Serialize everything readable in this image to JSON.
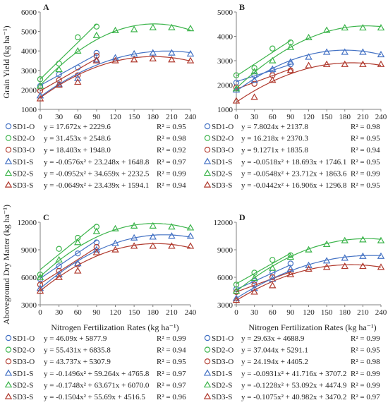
{
  "colors": {
    "SD1": "#4472c4",
    "SD2": "#3cb44b",
    "SD3": "#b03a2e",
    "axis": "#808080",
    "text": "#222222"
  },
  "common": {
    "xlabel": "Nitrogen Fertilization Rates (kg ha⁻¹)",
    "ylabel_top": "Grain Yield (kg ha⁻¹)",
    "ylabel_bottom": "Aboveground Dry Matter (kg ha⁻¹)"
  },
  "chart_data": [
    {
      "panel": "A",
      "type": "scatter",
      "xlabel": "",
      "ylabel": "Grain Yield (kg ha⁻¹)",
      "xlim": [
        0,
        240
      ],
      "ylim": [
        1000,
        6000
      ],
      "xticks": [
        0,
        30,
        60,
        90,
        120,
        150,
        180,
        210,
        240
      ],
      "yticks": [
        1000,
        2000,
        3000,
        4000,
        5000,
        6000
      ],
      "series": [
        {
          "name": "SD1-O",
          "group": "SD1",
          "marker": "circle",
          "x": [
            0,
            30,
            60,
            90
          ],
          "y": [
            2200,
            2800,
            3150,
            3900
          ],
          "eq": "y = 17.672x + 2229.6",
          "r2": "R² = 0.95"
        },
        {
          "name": "SD2-O",
          "group": "SD2",
          "marker": "circle",
          "x": [
            0,
            30,
            60,
            90
          ],
          "y": [
            2550,
            3350,
            4700,
            5250
          ],
          "eq": "y = 31.453x + 2548.6",
          "r2": "R² = 0.98"
        },
        {
          "name": "SD3-O",
          "group": "SD3",
          "marker": "circle",
          "x": [
            0,
            30,
            60,
            90
          ],
          "y": [
            1950,
            2500,
            2750,
            3750
          ],
          "eq": "y = 18.403x + 1948.0",
          "r2": "R² = 0.92"
        },
        {
          "name": "SD1-S",
          "group": "SD1",
          "marker": "triangle",
          "x": [
            0,
            30,
            60,
            90,
            120,
            150,
            180,
            210,
            240
          ],
          "y": [
            1700,
            2300,
            2600,
            3550,
            3650,
            3850,
            3900,
            3900,
            3850
          ],
          "eq": "y = -0.0576x² + 23.248x + 1648.8",
          "r2": "R² = 0.97"
        },
        {
          "name": "SD2-S",
          "group": "SD2",
          "marker": "triangle",
          "x": [
            0,
            30,
            60,
            90,
            120,
            150,
            180,
            210,
            240
          ],
          "y": [
            2200,
            3050,
            4000,
            4800,
            5050,
            5100,
            5200,
            5200,
            5150
          ],
          "eq": "y = -0.0952x² + 34.659x + 2232.5",
          "r2": "R² = 0.99"
        },
        {
          "name": "SD3-S",
          "group": "SD3",
          "marker": "triangle",
          "x": [
            0,
            30,
            60,
            90,
            120,
            150,
            180,
            210,
            240
          ],
          "y": [
            1550,
            2250,
            2400,
            3500,
            3500,
            3550,
            3600,
            3550,
            3500
          ],
          "eq": "y = -0.0649x² + 23.439x + 1594.1",
          "r2": "R² = 0.94"
        }
      ]
    },
    {
      "panel": "B",
      "type": "scatter",
      "xlabel": "",
      "ylabel": "",
      "xlim": [
        0,
        240
      ],
      "ylim": [
        1000,
        5000
      ],
      "xticks": [
        0,
        30,
        60,
        90,
        120,
        150,
        180,
        210,
        240
      ],
      "yticks": [
        1000,
        2000,
        3000,
        4000,
        5000
      ],
      "series": [
        {
          "name": "SD1-O",
          "group": "SD1",
          "marker": "circle",
          "x": [
            0,
            30,
            60,
            90
          ],
          "y": [
            2100,
            2400,
            2600,
            2850
          ],
          "eq": "y = 7.8024x + 2137.8",
          "r2": "R² = 0.98"
        },
        {
          "name": "SD2-O",
          "group": "SD2",
          "marker": "circle",
          "x": [
            0,
            30,
            60,
            90
          ],
          "y": [
            2400,
            2700,
            3500,
            3750
          ],
          "eq": "y = 16.218x + 2370.3",
          "r2": "R² = 0.95"
        },
        {
          "name": "SD3-O",
          "group": "SD3",
          "marker": "circle",
          "x": [
            0,
            30,
            60,
            90
          ],
          "y": [
            1900,
            2050,
            2400,
            2600
          ],
          "eq": "y = 9.1271x + 1835.8",
          "r2": "R² = 0.94"
        },
        {
          "name": "SD1-S",
          "group": "SD1",
          "marker": "triangle",
          "x": [
            0,
            30,
            60,
            90,
            120,
            150,
            180,
            210,
            240
          ],
          "y": [
            1800,
            2200,
            2650,
            2950,
            3150,
            3350,
            3350,
            3350,
            3250
          ],
          "eq": "y = -0.0518x² + 18.693x + 1746.1",
          "r2": "R² = 0.95"
        },
        {
          "name": "SD2-S",
          "group": "SD2",
          "marker": "triangle",
          "x": [
            0,
            30,
            60,
            90,
            120,
            150,
            180,
            210,
            240
          ],
          "y": [
            1850,
            2550,
            3000,
            3550,
            3950,
            4250,
            4350,
            4350,
            4350
          ],
          "eq": "y = -0.0548x² + 23.712x + 1863.6",
          "r2": "R² = 0.99"
        },
        {
          "name": "SD3-S",
          "group": "SD3",
          "marker": "triangle",
          "x": [
            0,
            30,
            60,
            90,
            120,
            150,
            180,
            210,
            240
          ],
          "y": [
            1350,
            1500,
            2200,
            2600,
            2800,
            2850,
            2850,
            2850,
            2850
          ],
          "eq": "y = -0.0442x² + 16.906x + 1296.8",
          "r2": "R² = 0.95"
        }
      ]
    },
    {
      "panel": "C",
      "type": "scatter",
      "xlabel": "Nitrogen Fertilization Rates (kg ha⁻¹)",
      "ylabel": "Aboveground Dry Matter (kg ha⁻¹)",
      "xlim": [
        0,
        240
      ],
      "ylim": [
        3000,
        12000
      ],
      "xticks": [
        0,
        30,
        60,
        90,
        120,
        150,
        180,
        210,
        240
      ],
      "yticks": [
        3000,
        6000,
        9000,
        12000
      ],
      "series": [
        {
          "name": "SD1-O",
          "group": "SD1",
          "marker": "circle",
          "x": [
            0,
            30,
            60,
            90
          ],
          "y": [
            5800,
            7200,
            8600,
            9800
          ],
          "eq": "y = 46.09x + 5877.9",
          "r2": "R² = 0.99"
        },
        {
          "name": "SD2-O",
          "group": "SD2",
          "marker": "circle",
          "x": [
            0,
            30,
            60,
            90
          ],
          "y": [
            6300,
            9100,
            10300,
            11500
          ],
          "eq": "y = 55.431x + 6835.8",
          "r2": "R² = 0.94"
        },
        {
          "name": "SD3-O",
          "group": "SD3",
          "marker": "circle",
          "x": [
            0,
            30,
            60,
            90
          ],
          "y": [
            5200,
            6700,
            7400,
            9300
          ],
          "eq": "y = 43.737x + 5307.9",
          "r2": "R² = 0.95"
        },
        {
          "name": "SD1-S",
          "group": "SD1",
          "marker": "triangle",
          "x": [
            0,
            30,
            60,
            90,
            120,
            150,
            180,
            210,
            240
          ],
          "y": [
            4800,
            6300,
            7500,
            9000,
            9700,
            10300,
            10400,
            10500,
            10500
          ],
          "eq": "y = -0.1496x² + 59.264x + 4765.8",
          "r2": "R² = 0.97"
        },
        {
          "name": "SD2-S",
          "group": "SD2",
          "marker": "triangle",
          "x": [
            0,
            30,
            60,
            90,
            120,
            150,
            180,
            210,
            240
          ],
          "y": [
            6000,
            7900,
            9800,
            11000,
            11300,
            11600,
            11600,
            11500,
            11400
          ],
          "eq": "y = -0.1748x² + 63.671x + 6070.0",
          "r2": "R² = 0.97"
        },
        {
          "name": "SD3-S",
          "group": "SD3",
          "marker": "triangle",
          "x": [
            0,
            30,
            60,
            90,
            120,
            150,
            180,
            210,
            240
          ],
          "y": [
            4500,
            6000,
            6700,
            8700,
            9000,
            9400,
            9400,
            9400,
            9400
          ],
          "eq": "y = -0.1504x² + 55.69x + 4516.5",
          "r2": "R² = 0.96"
        }
      ]
    },
    {
      "panel": "D",
      "type": "scatter",
      "xlabel": "Nitrogen Fertilization Rates (kg ha⁻¹)",
      "ylabel": "",
      "xlim": [
        0,
        240
      ],
      "ylim": [
        3000,
        12000
      ],
      "xticks": [
        0,
        30,
        60,
        90,
        120,
        150,
        180,
        210,
        240
      ],
      "yticks": [
        3000,
        6000,
        9000,
        12000
      ],
      "series": [
        {
          "name": "SD1-O",
          "group": "SD1",
          "marker": "circle",
          "x": [
            0,
            30,
            60,
            90
          ],
          "y": [
            4700,
            5600,
            6500,
            7500
          ],
          "eq": "y = 29.63x + 4688.9",
          "r2": "R² = 0.99"
        },
        {
          "name": "SD2-O",
          "group": "SD2",
          "marker": "circle",
          "x": [
            0,
            30,
            60,
            90
          ],
          "y": [
            5200,
            6500,
            7900,
            8400
          ],
          "eq": "y = 37.044x + 5291.1",
          "r2": "R² = 0.95"
        },
        {
          "name": "SD3-O",
          "group": "SD3",
          "marker": "circle",
          "x": [
            0,
            30,
            60,
            90
          ],
          "y": [
            4400,
            5200,
            6000,
            6600
          ],
          "eq": "y = 24.194x + 4405.2",
          "r2": "R² = 0.98"
        },
        {
          "name": "SD1-S",
          "group": "SD1",
          "marker": "triangle",
          "x": [
            0,
            30,
            60,
            90,
            120,
            150,
            180,
            210,
            240
          ],
          "y": [
            3700,
            4800,
            5800,
            6900,
            7300,
            7800,
            8100,
            8300,
            8300
          ],
          "eq": "y = -0.0931x² + 41.716x + 3707.2",
          "r2": "R² = 0.99"
        },
        {
          "name": "SD2-S",
          "group": "SD2",
          "marker": "triangle",
          "x": [
            0,
            30,
            60,
            90,
            120,
            150,
            180,
            210,
            240
          ],
          "y": [
            4500,
            5900,
            7000,
            8200,
            9000,
            9600,
            10000,
            10100,
            10000
          ],
          "eq": "y = -0.1228x² + 53.092x + 4474.9",
          "r2": "R² = 0.99"
        },
        {
          "name": "SD3-S",
          "group": "SD3",
          "marker": "triangle",
          "x": [
            0,
            30,
            60,
            90,
            120,
            150,
            180,
            210,
            240
          ],
          "y": [
            3500,
            4400,
            5100,
            6300,
            6900,
            7100,
            7200,
            7200,
            7100
          ],
          "eq": "y = -0.1075x² + 40.982x + 3470.2",
          "r2": "R² = 0.97"
        }
      ]
    }
  ]
}
